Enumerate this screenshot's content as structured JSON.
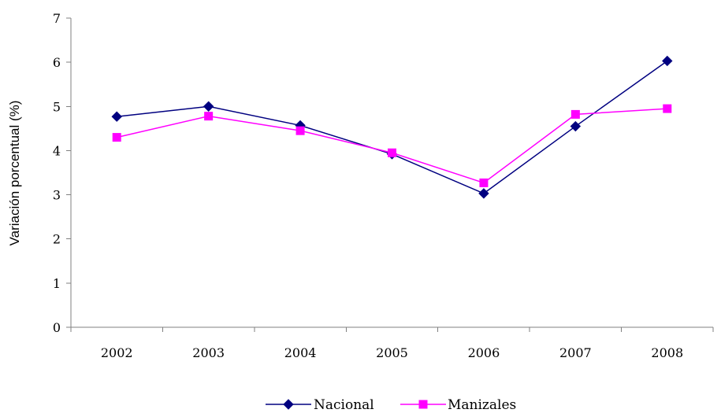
{
  "chart_data": {
    "type": "line",
    "title": "",
    "xlabel": "",
    "ylabel": "Variación porcentual (%)",
    "categories": [
      "2002",
      "2003",
      "2004",
      "2005",
      "2006",
      "2007",
      "2008"
    ],
    "ylim": [
      0,
      7
    ],
    "yticks": [
      "0",
      "1",
      "2",
      "3",
      "4",
      "5",
      "6",
      "7"
    ],
    "grid": false,
    "legend_position": "bottom",
    "series": [
      {
        "name": "Nacional",
        "values": [
          4.77,
          5.0,
          4.57,
          3.92,
          3.03,
          4.55,
          6.03
        ],
        "color": "#000080",
        "marker": "diamond"
      },
      {
        "name": "Manizales",
        "values": [
          4.3,
          4.78,
          4.45,
          3.95,
          3.27,
          4.82,
          4.95
        ],
        "color": "#FF00FF",
        "marker": "square"
      }
    ]
  }
}
